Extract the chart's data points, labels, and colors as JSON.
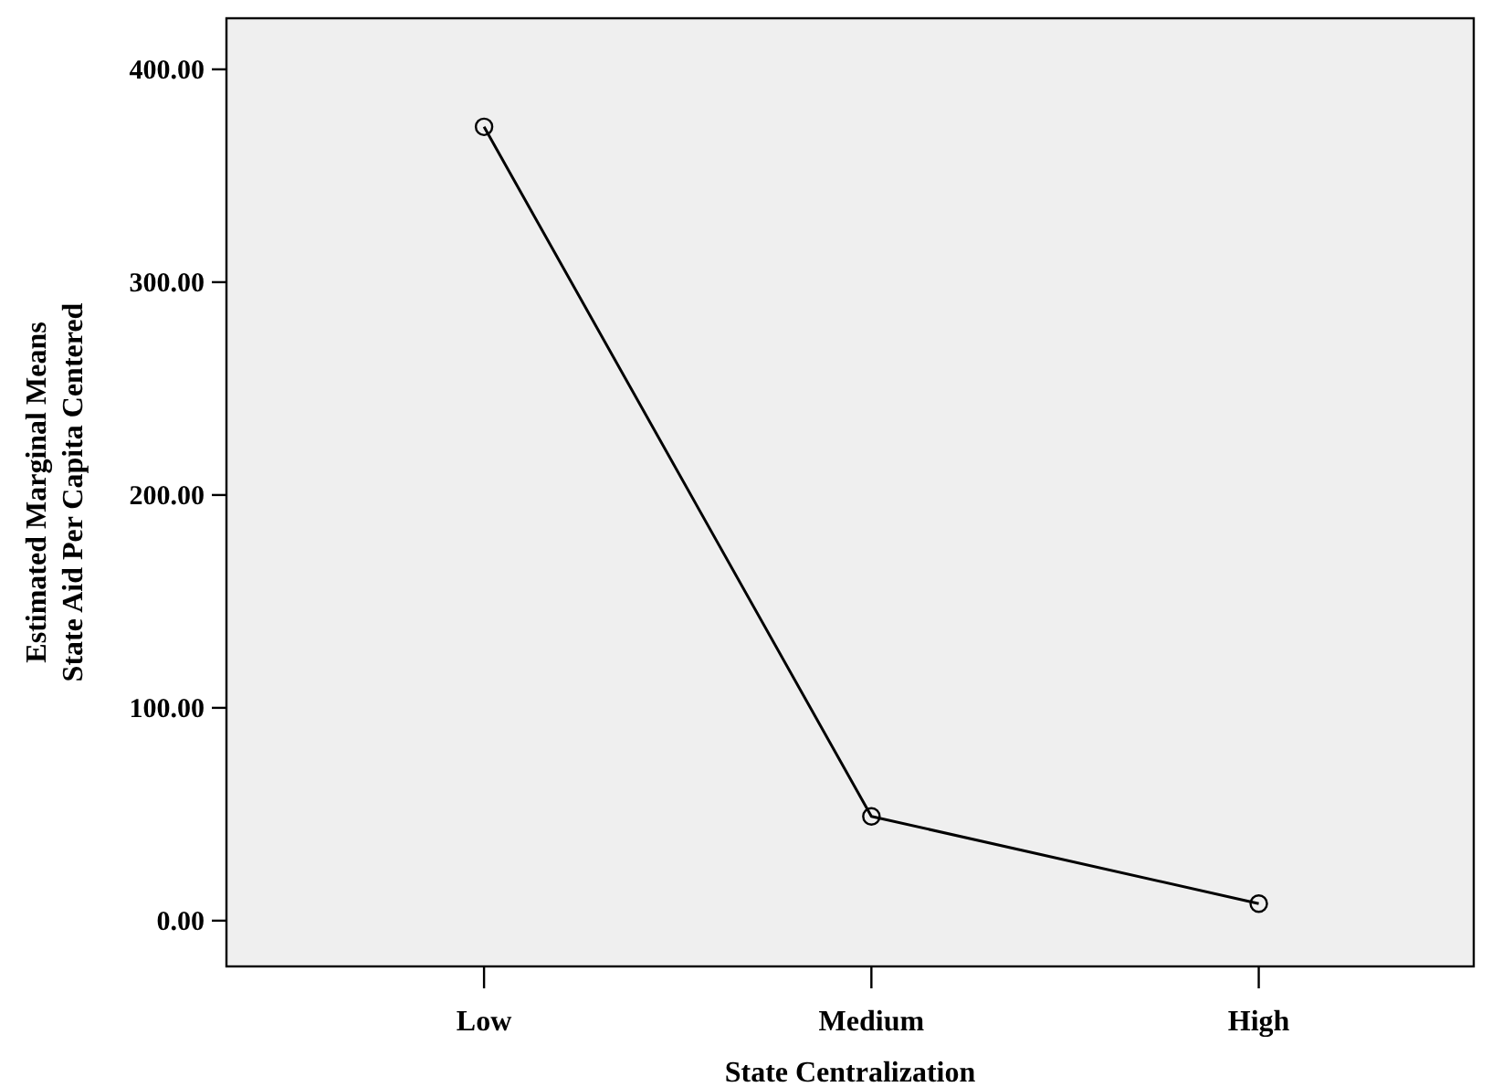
{
  "chart_data": {
    "type": "line",
    "xlabel": "State Centralization",
    "ylabel": "Estimated Marginal Means\nState Aid Per Capita Centered",
    "categories": [
      "Low",
      "Medium",
      "High"
    ],
    "series": [
      {
        "color": "#000000",
        "values": [
          373,
          49,
          8
        ]
      }
    ],
    "ylim": [
      -21.5,
      424
    ],
    "yticks": [
      {
        "value": 0,
        "label": "0.00"
      },
      {
        "value": 100,
        "label": "100.00"
      },
      {
        "value": 200,
        "label": "200.00"
      },
      {
        "value": 300,
        "label": "300.00"
      },
      {
        "value": 400,
        "label": "400.00"
      }
    ],
    "grid": false,
    "marker": "circle",
    "line_style": "solid"
  }
}
